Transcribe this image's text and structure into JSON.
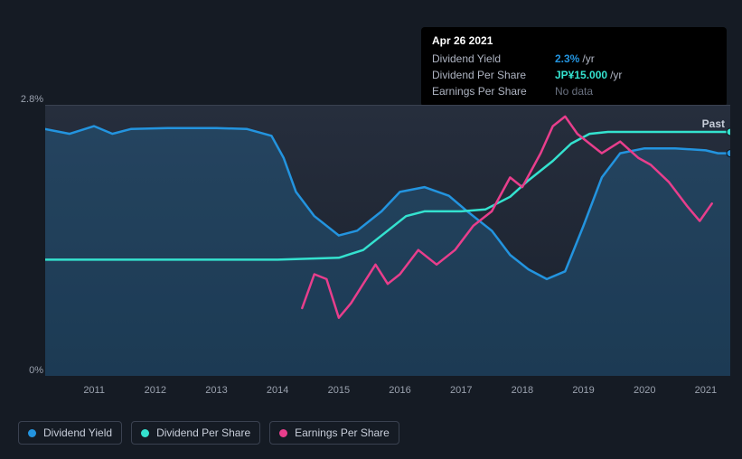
{
  "tooltip": {
    "date": "Apr 26 2021",
    "rows": [
      {
        "label": "Dividend Yield",
        "value": "2.3%",
        "unit": "/yr",
        "color": "#2394df"
      },
      {
        "label": "Dividend Per Share",
        "value": "JP¥15.000",
        "unit": "/yr",
        "color": "#34e2cf"
      },
      {
        "label": "Earnings Per Share",
        "value": "No data",
        "nodata": true
      }
    ]
  },
  "chart": {
    "type": "line+area",
    "background": "#1b2330",
    "plot_bg_gradient": [
      "#262e3d",
      "#1a212d"
    ],
    "xlim": [
      2010.2,
      2021.4
    ],
    "ylim_pct": [
      0,
      2.8
    ],
    "yticks": [
      {
        "v": 2.8,
        "label": "2.8%"
      },
      {
        "v": 0,
        "label": "0%"
      }
    ],
    "xticks": [
      2011,
      2012,
      2013,
      2014,
      2015,
      2016,
      2017,
      2018,
      2019,
      2020,
      2021
    ],
    "past_label": "Past",
    "series": {
      "dividend_yield": {
        "type": "area_line",
        "line_color": "#2394df",
        "fill_color": "rgba(35,148,223,0.22)",
        "line_width": 2.5,
        "points": [
          [
            2010.2,
            2.55
          ],
          [
            2010.6,
            2.5
          ],
          [
            2011.0,
            2.58
          ],
          [
            2011.3,
            2.5
          ],
          [
            2011.6,
            2.55
          ],
          [
            2012.2,
            2.56
          ],
          [
            2013.0,
            2.56
          ],
          [
            2013.5,
            2.55
          ],
          [
            2013.9,
            2.48
          ],
          [
            2014.1,
            2.25
          ],
          [
            2014.3,
            1.9
          ],
          [
            2014.6,
            1.65
          ],
          [
            2015.0,
            1.45
          ],
          [
            2015.3,
            1.5
          ],
          [
            2015.7,
            1.7
          ],
          [
            2016.0,
            1.9
          ],
          [
            2016.4,
            1.95
          ],
          [
            2016.8,
            1.86
          ],
          [
            2017.1,
            1.7
          ],
          [
            2017.5,
            1.5
          ],
          [
            2017.8,
            1.25
          ],
          [
            2018.1,
            1.1
          ],
          [
            2018.4,
            1.0
          ],
          [
            2018.7,
            1.08
          ],
          [
            2019.0,
            1.55
          ],
          [
            2019.3,
            2.05
          ],
          [
            2019.6,
            2.3
          ],
          [
            2020.0,
            2.35
          ],
          [
            2020.5,
            2.35
          ],
          [
            2021.0,
            2.33
          ],
          [
            2021.2,
            2.3
          ],
          [
            2021.4,
            2.3
          ]
        ],
        "end_marker": true
      },
      "dividend_per_share": {
        "type": "line",
        "line_color": "#34e2cf",
        "line_width": 2.5,
        "points": [
          [
            2010.2,
            1.2
          ],
          [
            2012.0,
            1.2
          ],
          [
            2014.0,
            1.2
          ],
          [
            2015.0,
            1.22
          ],
          [
            2015.4,
            1.3
          ],
          [
            2015.8,
            1.5
          ],
          [
            2016.1,
            1.65
          ],
          [
            2016.4,
            1.7
          ],
          [
            2017.0,
            1.7
          ],
          [
            2017.4,
            1.72
          ],
          [
            2017.8,
            1.85
          ],
          [
            2018.1,
            2.02
          ],
          [
            2018.5,
            2.22
          ],
          [
            2018.8,
            2.4
          ],
          [
            2019.1,
            2.5
          ],
          [
            2019.4,
            2.52
          ],
          [
            2020.0,
            2.52
          ],
          [
            2021.0,
            2.52
          ],
          [
            2021.4,
            2.52
          ]
        ],
        "end_marker": true
      },
      "earnings_per_share": {
        "type": "line",
        "line_color": "#e83e8c",
        "line_width": 2.5,
        "points": [
          [
            2014.4,
            0.7
          ],
          [
            2014.6,
            1.05
          ],
          [
            2014.8,
            1.0
          ],
          [
            2015.0,
            0.6
          ],
          [
            2015.2,
            0.75
          ],
          [
            2015.4,
            0.95
          ],
          [
            2015.6,
            1.15
          ],
          [
            2015.8,
            0.95
          ],
          [
            2016.0,
            1.05
          ],
          [
            2016.3,
            1.3
          ],
          [
            2016.6,
            1.15
          ],
          [
            2016.9,
            1.3
          ],
          [
            2017.2,
            1.55
          ],
          [
            2017.5,
            1.7
          ],
          [
            2017.8,
            2.05
          ],
          [
            2018.0,
            1.95
          ],
          [
            2018.3,
            2.3
          ],
          [
            2018.5,
            2.58
          ],
          [
            2018.7,
            2.68
          ],
          [
            2018.9,
            2.5
          ],
          [
            2019.1,
            2.4
          ],
          [
            2019.3,
            2.3
          ],
          [
            2019.6,
            2.42
          ],
          [
            2019.9,
            2.25
          ],
          [
            2020.1,
            2.18
          ],
          [
            2020.4,
            2.0
          ],
          [
            2020.7,
            1.75
          ],
          [
            2020.9,
            1.6
          ],
          [
            2021.1,
            1.78
          ]
        ],
        "end_marker": false
      }
    }
  },
  "legend": [
    {
      "label": "Dividend Yield",
      "color": "#2394df"
    },
    {
      "label": "Dividend Per Share",
      "color": "#34e2cf"
    },
    {
      "label": "Earnings Per Share",
      "color": "#e83e8c"
    }
  ]
}
